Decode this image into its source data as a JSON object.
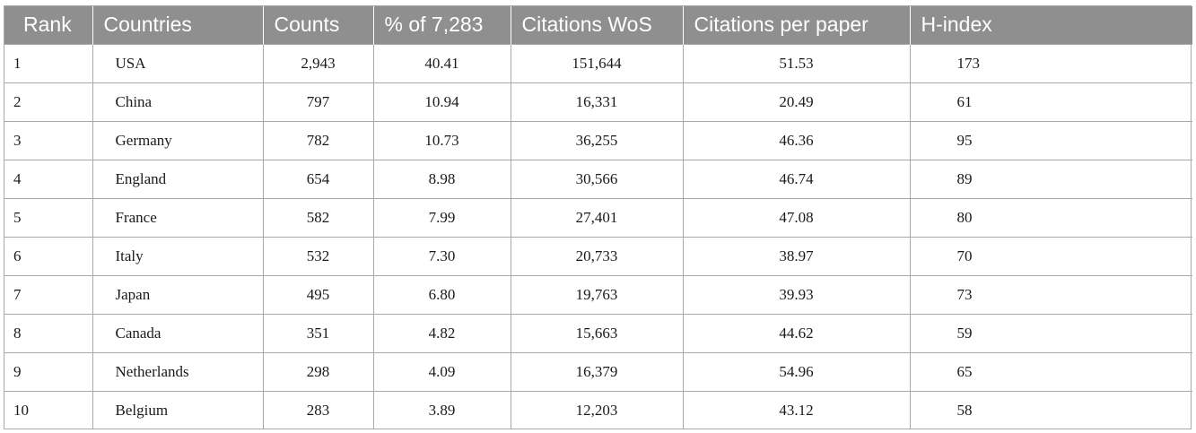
{
  "table": {
    "headers": [
      "Rank",
      "Countries",
      "Counts",
      "% of 7,283",
      "Citations WoS",
      "Citations per paper",
      "H-index"
    ],
    "rows": [
      {
        "rank": "1",
        "country": "USA",
        "counts": "2,943",
        "pct": "40.41",
        "citations": "151,644",
        "cpp": "51.53",
        "hindex": "173"
      },
      {
        "rank": "2",
        "country": "China",
        "counts": "797",
        "pct": "10.94",
        "citations": "16,331",
        "cpp": "20.49",
        "hindex": "61"
      },
      {
        "rank": "3",
        "country": "Germany",
        "counts": "782",
        "pct": "10.73",
        "citations": "36,255",
        "cpp": "46.36",
        "hindex": "95"
      },
      {
        "rank": "4",
        "country": "England",
        "counts": "654",
        "pct": "8.98",
        "citations": "30,566",
        "cpp": "46.74",
        "hindex": "89"
      },
      {
        "rank": "5",
        "country": "France",
        "counts": "582",
        "pct": "7.99",
        "citations": "27,401",
        "cpp": "47.08",
        "hindex": "80"
      },
      {
        "rank": "6",
        "country": "Italy",
        "counts": "532",
        "pct": "7.30",
        "citations": "20,733",
        "cpp": "38.97",
        "hindex": "70"
      },
      {
        "rank": "7",
        "country": "Japan",
        "counts": "495",
        "pct": "6.80",
        "citations": "19,763",
        "cpp": "39.93",
        "hindex": "73"
      },
      {
        "rank": "8",
        "country": "Canada",
        "counts": "351",
        "pct": "4.82",
        "citations": "15,663",
        "cpp": "44.62",
        "hindex": "59"
      },
      {
        "rank": "9",
        "country": "Netherlands",
        "counts": "298",
        "pct": "4.09",
        "citations": "16,379",
        "cpp": "54.96",
        "hindex": "65"
      },
      {
        "rank": "10",
        "country": "Belgium",
        "counts": "283",
        "pct": "3.89",
        "citations": "12,203",
        "cpp": "43.12",
        "hindex": "58"
      }
    ]
  },
  "colors": {
    "header_bg": "#8f8f8f",
    "header_text": "#ffffff",
    "grid_line": "#a8a8a8"
  }
}
